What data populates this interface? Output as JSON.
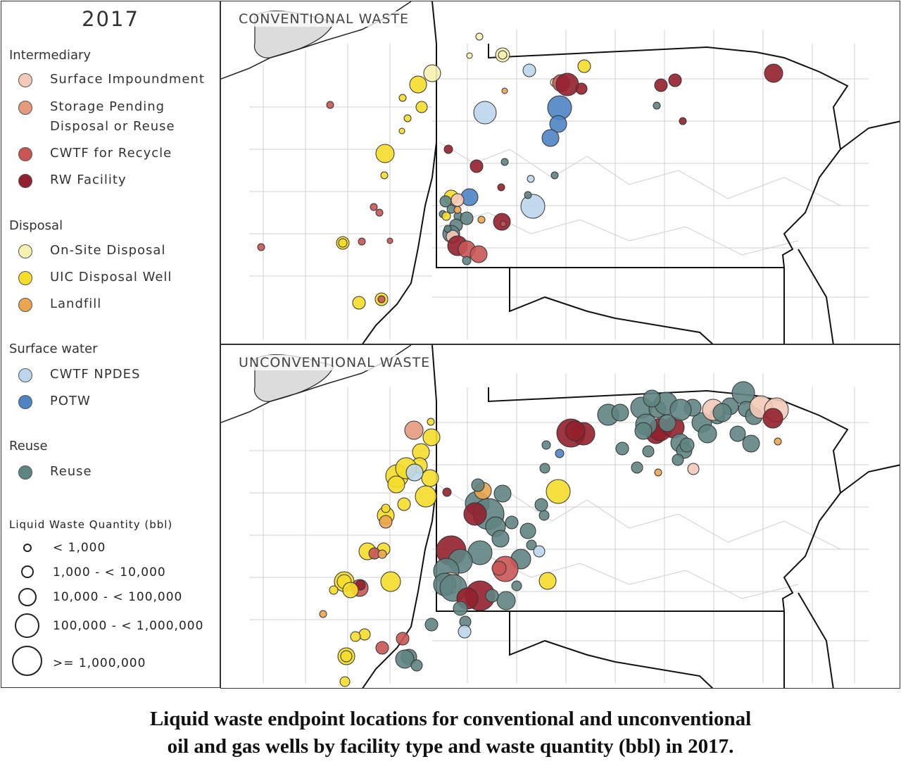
{
  "year": "2017",
  "legend": {
    "groups": [
      {
        "title": "Intermediary",
        "items": [
          {
            "label": "Surface  Impoundment",
            "color": "#f3c9b7"
          },
          {
            "label": "Storage  Pending\nDisposal  or  Reuse",
            "color": "#e69a7e"
          },
          {
            "label": "CWTF  for  Recycle",
            "color": "#c95555"
          },
          {
            "label": "RW  Facility",
            "color": "#93202e"
          }
        ]
      },
      {
        "title": "Disposal",
        "items": [
          {
            "label": "On-Site  Disposal",
            "color": "#f5f1b0"
          },
          {
            "label": "UIC  Disposal  Well",
            "color": "#f5dd2a"
          },
          {
            "label": "Landfill",
            "color": "#eba54f"
          }
        ]
      },
      {
        "title": "Surface  water",
        "items": [
          {
            "label": "CWTF  NPDES",
            "color": "#bcd6ec"
          },
          {
            "label": "POTW",
            "color": "#4f84c4"
          }
        ]
      },
      {
        "title": "Reuse",
        "items": [
          {
            "label": "Reuse",
            "color": "#5f8482"
          }
        ]
      }
    ],
    "size_title": "Liquid  Waste  Quantity  (bbl)",
    "size_classes": [
      "< 1,000",
      "1,000 - < 10,000",
      "10,000 - < 100,000",
      "100,000 - < 1,000,000",
      ">= 1,000,000"
    ]
  },
  "panels": {
    "top_title": "CONVENTIONAL  WASTE",
    "bottom_title": "UNCONVENTIONAL  WASTE"
  },
  "caption": {
    "line1": "Liquid waste endpoint locations for conventional and unconventional",
    "line2": "oil and gas wells by facility type and waste quantity (bbl) in 2017."
  }
}
